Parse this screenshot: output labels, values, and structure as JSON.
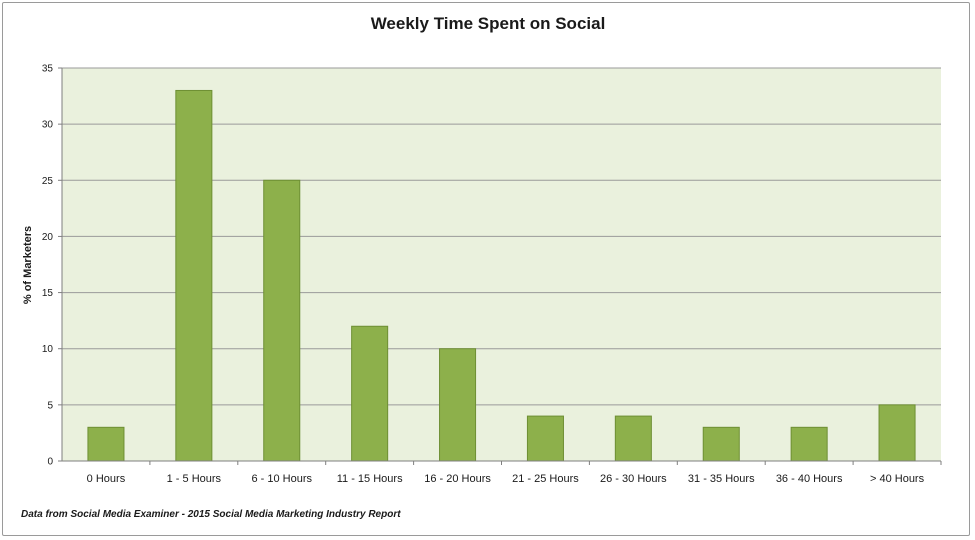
{
  "chart_data": {
    "type": "bar",
    "title": "Weekly Time Spent on Social",
    "xlabel": "",
    "ylabel": "% of Marketers",
    "categories": [
      "0 Hours",
      "1 - 5 Hours",
      "6 - 10 Hours",
      "11 - 15 Hours",
      "16 - 20 Hours",
      "21 - 25 Hours",
      "26 - 30 Hours",
      "31 - 35 Hours",
      "36 - 40 Hours",
      "> 40 Hours"
    ],
    "values": [
      3,
      33,
      25,
      12,
      10,
      4,
      4,
      3,
      3,
      5
    ],
    "ylim": [
      0,
      35
    ],
    "yticks": [
      "0",
      "5",
      "10",
      "15",
      "20",
      "25",
      "30",
      "35"
    ],
    "grid": true,
    "bar_color": "#8db04b",
    "bar_border_color": "#6e8f34",
    "plot_background": "#eaf1dd",
    "gridline_color": "#9a9a9a",
    "source_note": "Data from Social Media Examiner - 2015 Social Media Marketing Industry Report"
  }
}
